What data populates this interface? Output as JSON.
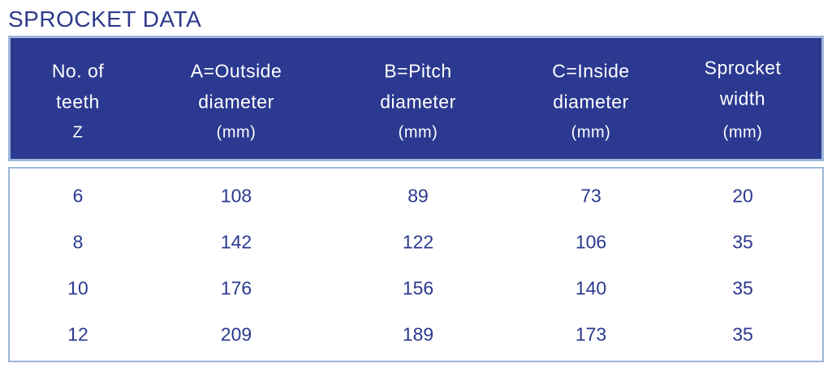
{
  "title": "SPROCKET DATA",
  "table": {
    "columns": [
      [
        "No. of",
        "teeth",
        "Z"
      ],
      [
        "A=Outside",
        "diameter",
        "(mm)"
      ],
      [
        "B=Pitch",
        "diameter",
        "(mm)"
      ],
      [
        "C=Inside",
        "diameter",
        "(mm)"
      ],
      [
        "Sprocket",
        "width",
        "(mm)"
      ]
    ],
    "rows": [
      [
        6,
        108,
        89,
        73,
        20
      ],
      [
        8,
        142,
        122,
        106,
        35
      ],
      [
        10,
        176,
        156,
        140,
        35
      ],
      [
        12,
        209,
        189,
        173,
        35
      ]
    ]
  }
}
